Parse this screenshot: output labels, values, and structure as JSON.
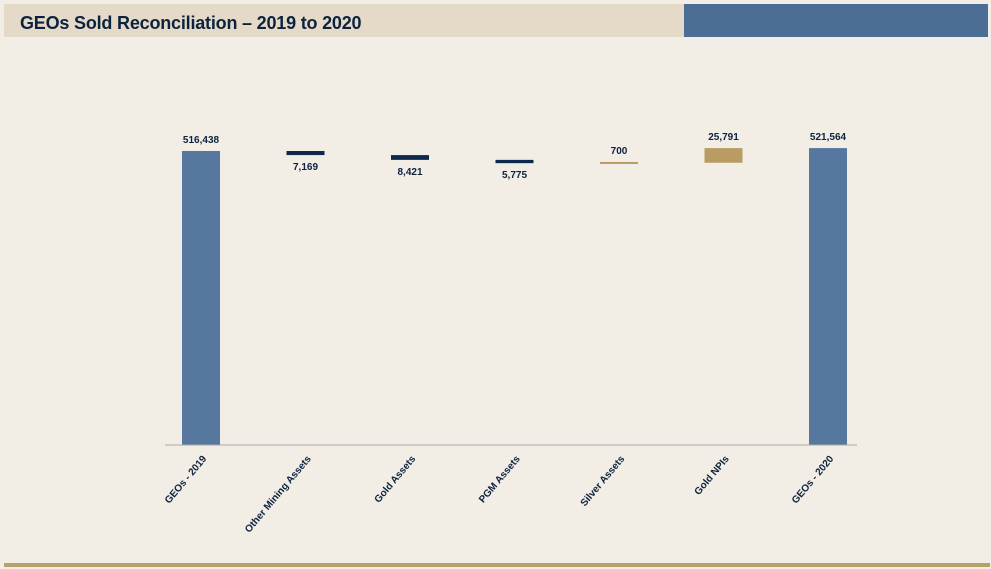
{
  "title": "GEOs Sold Reconciliation – 2019 to 2020",
  "colors": {
    "title_band": "#e5dac8",
    "title_text": "#0c2340",
    "accent_band": "#4d6e94",
    "total_bar": "#56789e",
    "decrease": "#0d2a4e",
    "increase": "#b89c62",
    "axis": "#a9a9a9",
    "rule": "#b9a06a"
  },
  "chart_data": {
    "type": "bar",
    "subtype": "waterfall",
    "title": "GEOs Sold Reconciliation – 2019 to 2020",
    "xlabel": "",
    "ylabel": "",
    "ylim": [
      0,
      530000
    ],
    "grid": false,
    "categories": [
      "GEOs - 2019",
      "Other Mining Assets",
      "Gold Assets",
      "PGM Assets",
      "Silver Assets",
      "Gold NPIs",
      "GEOs - 2020"
    ],
    "steps": [
      {
        "label": "GEOs - 2019",
        "kind": "total",
        "value": 516438,
        "value_label": "516,438"
      },
      {
        "label": "Other Mining Assets",
        "kind": "decrease",
        "value": -7169,
        "value_label": "7,169"
      },
      {
        "label": "Gold Assets",
        "kind": "decrease",
        "value": -8421,
        "value_label": "8,421"
      },
      {
        "label": "PGM Assets",
        "kind": "decrease",
        "value": -5775,
        "value_label": "5,775"
      },
      {
        "label": "Silver Assets",
        "kind": "increase",
        "value": 700,
        "value_label": "700"
      },
      {
        "label": "Gold NPIs",
        "kind": "increase",
        "value": 25791,
        "value_label": "25,791"
      },
      {
        "label": "GEOs - 2020",
        "kind": "total",
        "value": 521564,
        "value_label": "521,564"
      }
    ]
  }
}
